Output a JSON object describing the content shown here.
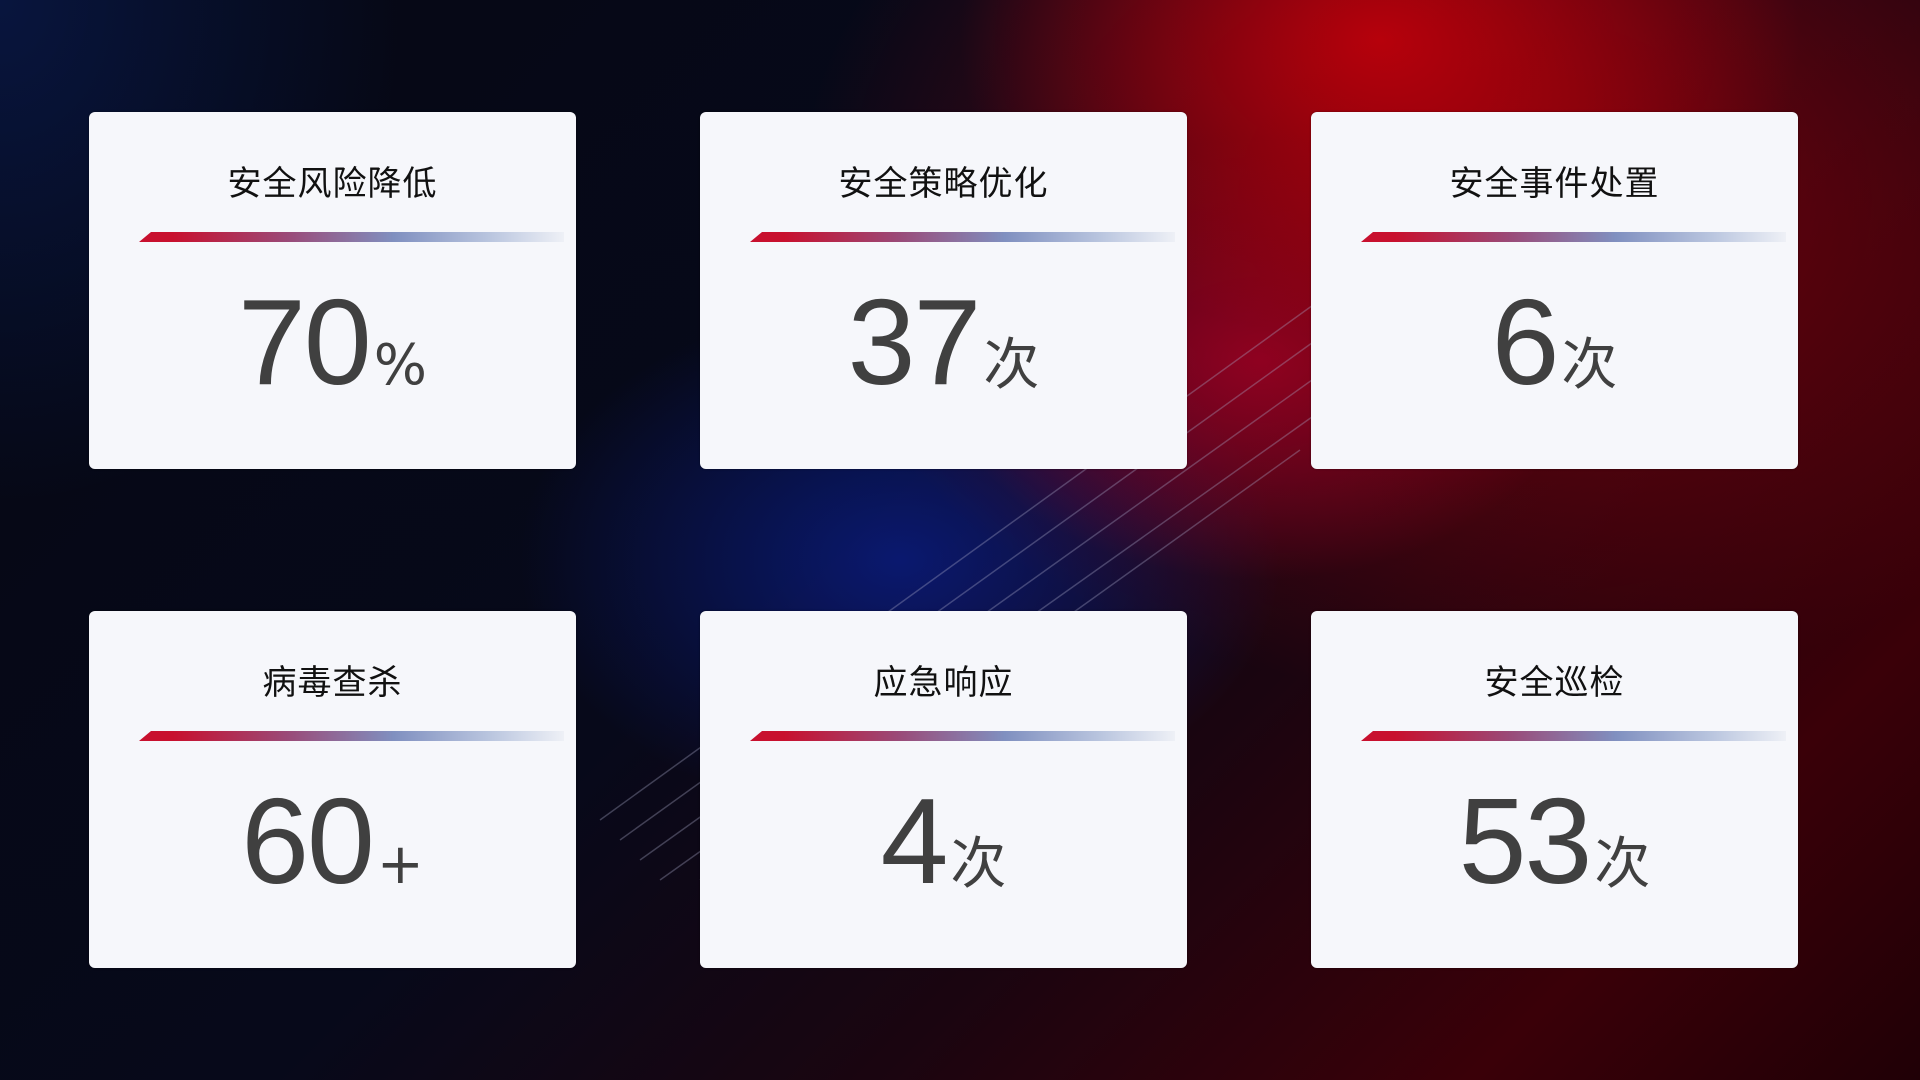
{
  "cards": [
    {
      "title": "安全风险降低",
      "value": "70",
      "unit": "%"
    },
    {
      "title": "安全策略优化",
      "value": "37",
      "unit": "次"
    },
    {
      "title": "安全事件处置",
      "value": "6",
      "unit": "次"
    },
    {
      "title": "病毒查杀",
      "value": "60",
      "unit": "+"
    },
    {
      "title": "应急响应",
      "value": "4",
      "unit": "次"
    },
    {
      "title": "安全巡检",
      "value": "53",
      "unit": "次"
    }
  ],
  "colors": {
    "accent_red": "#c8102e",
    "accent_blue": "#8090c0",
    "card_bg": "#f6f7fb",
    "value_text": "#404040"
  }
}
